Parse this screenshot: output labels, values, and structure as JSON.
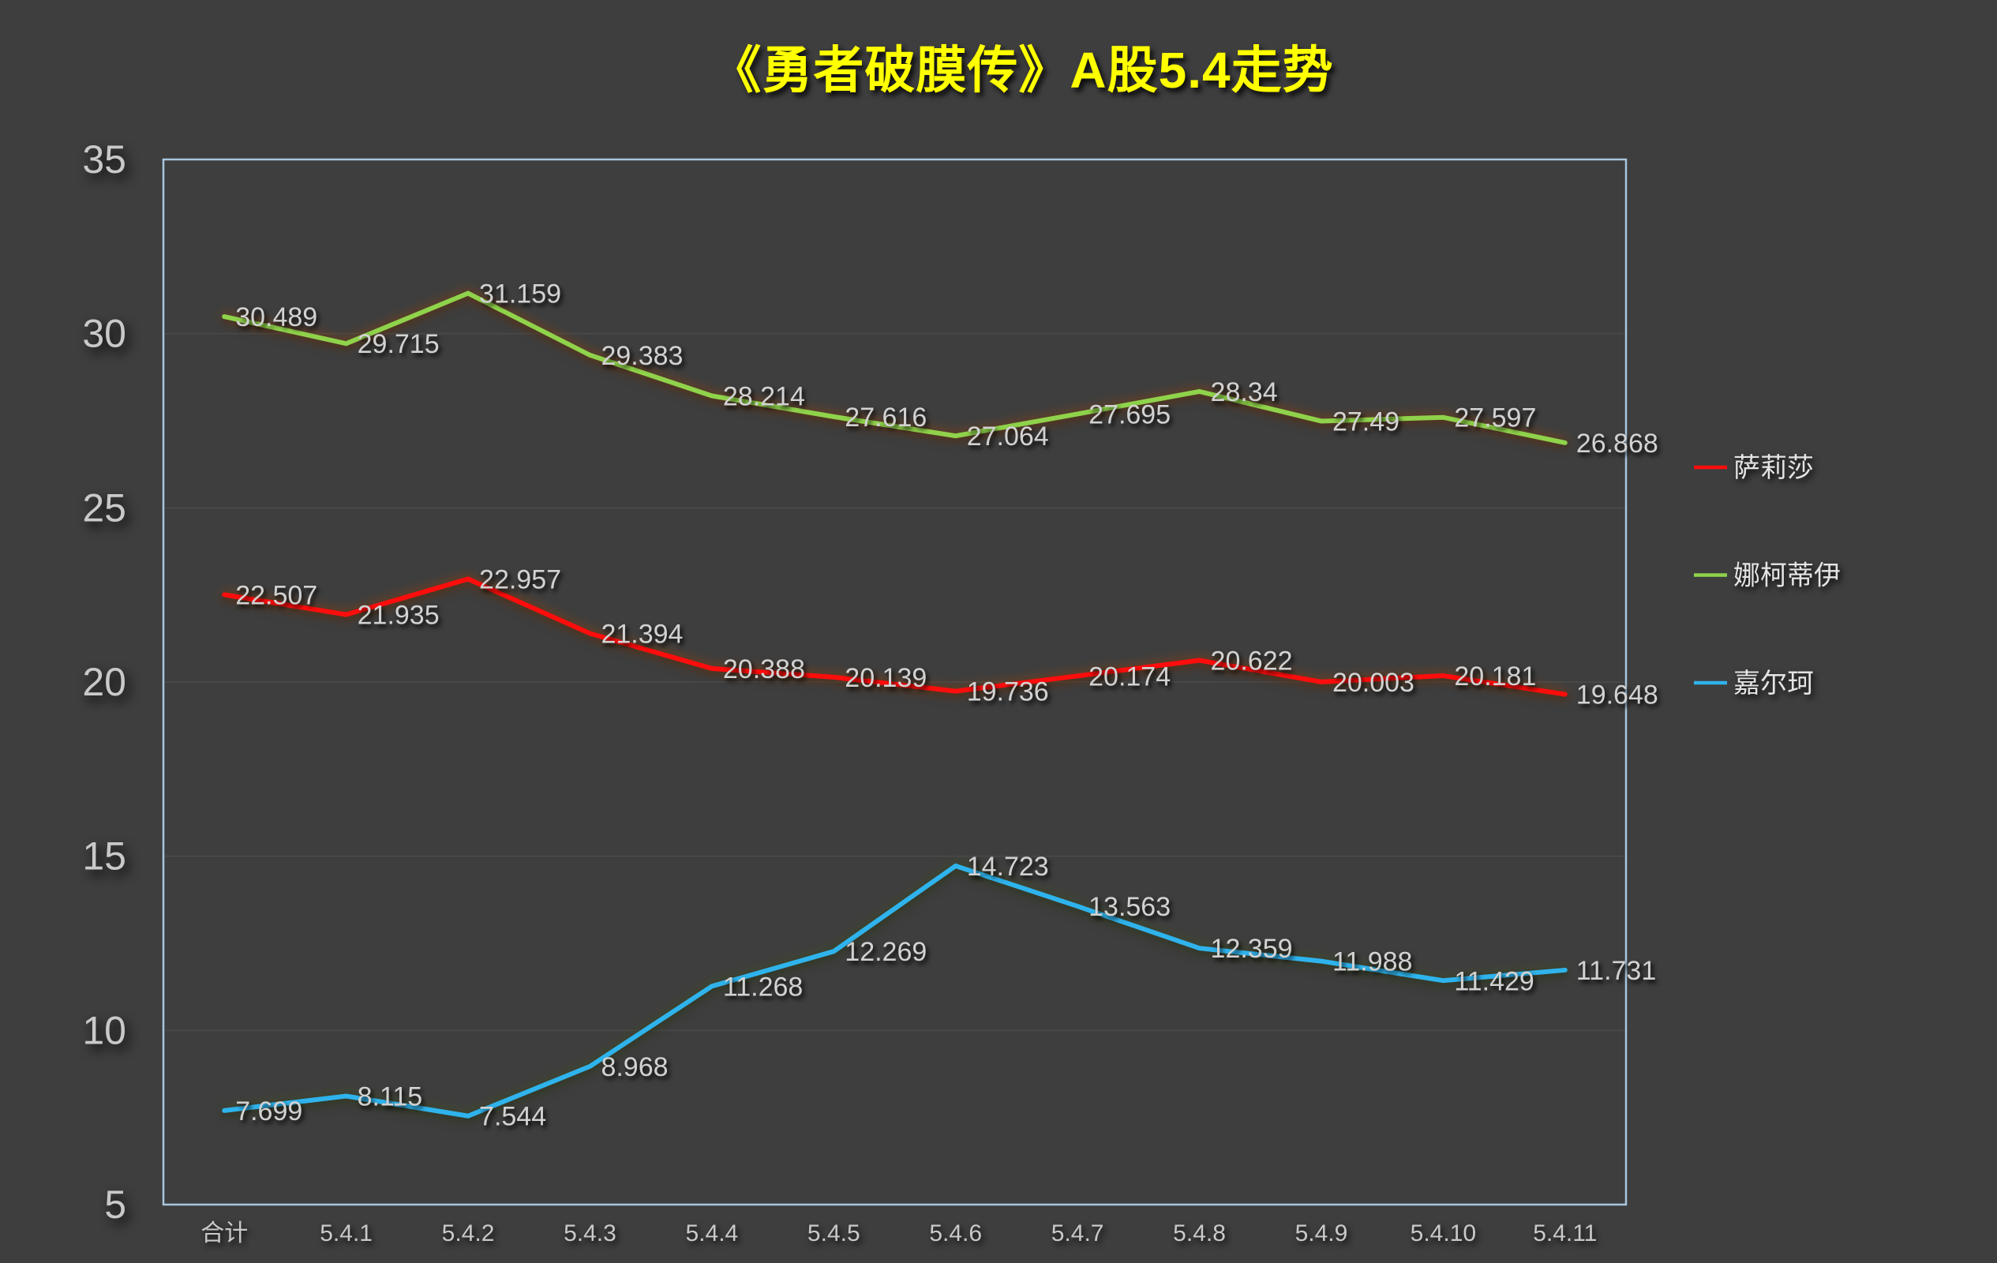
{
  "title": "《勇者破膜传》A股5.4走势",
  "colors": {
    "background": "#3E3E3E",
    "title": "#FFFF00",
    "plot_border": "#A9C7DF",
    "gridline": "#4B4B4B",
    "data_label": "#D2D2D2",
    "axis_label": "#C9C9C9",
    "legend_text": "#E4E4E4",
    "series_red": "#FF0D0D",
    "series_green": "#8FD24B",
    "series_blue": "#2FB3EC"
  },
  "chart_data": {
    "type": "line",
    "title": "《勇者破膜传》A股5.4走势",
    "xlabel": "",
    "ylabel": "",
    "categories": [
      "合计",
      "5.4.1",
      "5.4.2",
      "5.4.3",
      "5.4.4",
      "5.4.5",
      "5.4.6",
      "5.4.7",
      "5.4.8",
      "5.4.9",
      "5.4.10",
      "5.4.11"
    ],
    "series": [
      {
        "name": "萨莉莎",
        "color": "#FF0D0D",
        "glow": "warm",
        "values": [
          22.507,
          21.935,
          22.957,
          21.394,
          20.388,
          20.139,
          19.736,
          20.174,
          20.622,
          20.003,
          20.181,
          19.648
        ]
      },
      {
        "name": "娜柯蒂伊",
        "color": "#8FD24B",
        "glow": "warm",
        "values": [
          30.489,
          29.715,
          31.159,
          29.383,
          28.214,
          27.616,
          27.064,
          27.695,
          28.34,
          27.49,
          27.597,
          26.868
        ]
      },
      {
        "name": "嘉尔珂",
        "color": "#2FB3EC",
        "glow": "olive",
        "values": [
          7.699,
          8.115,
          7.544,
          8.968,
          11.268,
          12.269,
          14.723,
          13.563,
          12.359,
          11.988,
          11.429,
          11.731
        ]
      }
    ],
    "y_ticks": [
      5,
      10,
      15,
      20,
      25,
      30,
      35
    ],
    "ylim": [
      5,
      35
    ],
    "grid": "horizontal",
    "legend_position": "right",
    "data_labels": true
  }
}
